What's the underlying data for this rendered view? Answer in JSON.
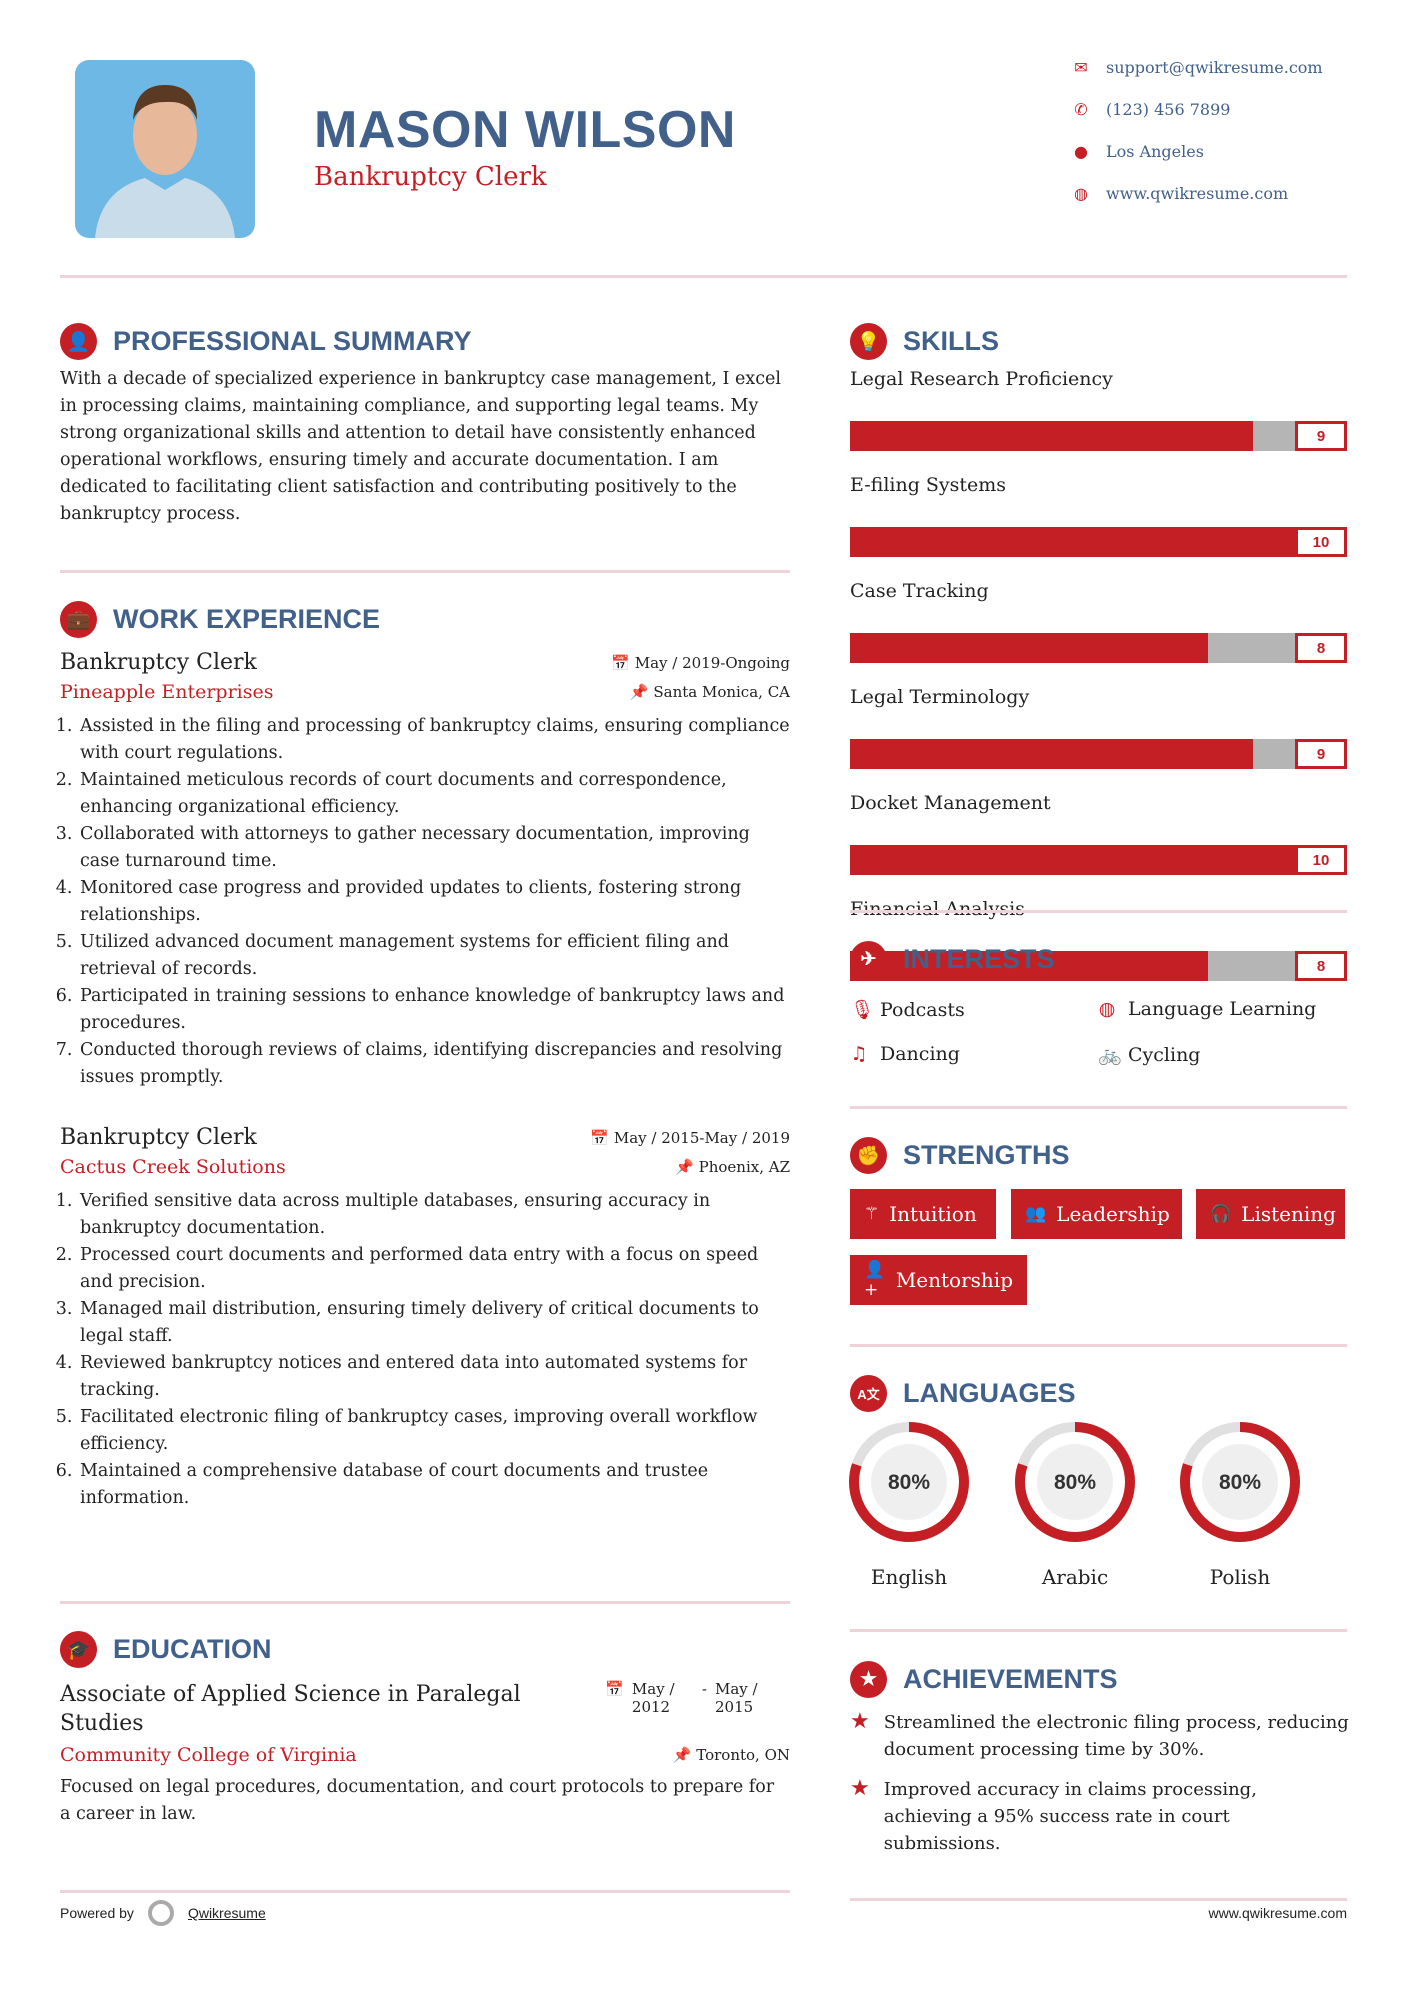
{
  "header": {
    "name": "MASON WILSON",
    "title": "Bankruptcy Clerk",
    "contacts": [
      {
        "icon": "envelope-icon",
        "text": "support@qwikresume.com"
      },
      {
        "icon": "phone-icon",
        "text": "(123) 456 7899"
      },
      {
        "icon": "map-marker-icon",
        "text": "Los Angeles"
      },
      {
        "icon": "globe-icon",
        "text": "www.qwikresume.com"
      }
    ]
  },
  "summary": {
    "heading": "PROFESSIONAL SUMMARY",
    "text": "With a decade of specialized experience in bankruptcy case management, I excel in processing claims, maintaining compliance, and supporting legal teams. My strong organizational skills and attention to detail have consistently enhanced operational workflows, ensuring timely and accurate documentation. I am dedicated to facilitating client satisfaction and contributing positively to the bankruptcy process."
  },
  "experience": {
    "heading": "WORK EXPERIENCE",
    "jobs": [
      {
        "title": "Bankruptcy Clerk",
        "company": "Pineapple Enterprises",
        "dates": "May / 2019-Ongoing",
        "location": "Santa Monica, CA",
        "items": [
          "Assisted in the filing and processing of bankruptcy claims, ensuring compliance with court regulations.",
          "Maintained meticulous records of court documents and correspondence, enhancing organizational efficiency.",
          "Collaborated with attorneys to gather necessary documentation, improving case turnaround time.",
          "Monitored case progress and provided updates to clients, fostering strong relationships.",
          "Utilized advanced document management systems for efficient filing and retrieval of records.",
          "Participated in training sessions to enhance knowledge of bankruptcy laws and procedures.",
          "Conducted thorough reviews of claims, identifying discrepancies and resolving issues promptly."
        ]
      },
      {
        "title": "Bankruptcy Clerk",
        "company": "Cactus Creek Solutions",
        "dates": "May / 2015-May / 2019",
        "location": "Phoenix, AZ",
        "items": [
          "Verified sensitive data across multiple databases, ensuring accuracy in bankruptcy documentation.",
          "Processed court documents and performed data entry with a focus on speed and precision.",
          "Managed mail distribution, ensuring timely delivery of critical documents to legal staff.",
          "Reviewed bankruptcy notices and entered data into automated systems for tracking.",
          "Facilitated electronic filing of bankruptcy cases, improving overall workflow efficiency.",
          "Maintained a comprehensive database of court documents and trustee information."
        ]
      }
    ]
  },
  "education": {
    "heading": "EDUCATION",
    "degree": "Associate of Applied Science in Paralegal Studies",
    "school": "Community College of Virginia",
    "start": "May / 2012",
    "end": "May / 2015",
    "location": "Toronto, ON",
    "text": "Focused on legal procedures, documentation, and court protocols to prepare for a career in law."
  },
  "skills": {
    "heading": "SKILLS",
    "max": 10,
    "items": [
      {
        "label": "Legal Research Proficiency",
        "value": 9
      },
      {
        "label": "E-filing Systems",
        "value": 10
      },
      {
        "label": "Case Tracking",
        "value": 8
      },
      {
        "label": "Legal Terminology",
        "value": 9
      },
      {
        "label": "Docket Management",
        "value": 10
      },
      {
        "label": "Financial Analysis",
        "value": 8
      }
    ]
  },
  "interests": {
    "heading": "INTERESTS",
    "items": [
      {
        "icon": "microphone-icon",
        "label": "Podcasts"
      },
      {
        "icon": "globe-icon",
        "label": "Language Learning"
      },
      {
        "icon": "music-icon",
        "label": "Dancing"
      },
      {
        "icon": "bicycle-icon",
        "label": "Cycling"
      }
    ]
  },
  "strengths": {
    "heading": "STRENGTHS",
    "items": [
      {
        "icon": "magic-wand-icon",
        "label": "Intuition"
      },
      {
        "icon": "users-icon",
        "label": "Leadership"
      },
      {
        "icon": "headphones-icon",
        "label": "Listening"
      },
      {
        "icon": "user-plus-icon",
        "label": "Mentorship"
      }
    ]
  },
  "languages": {
    "heading": "LANGUAGES",
    "items": [
      {
        "label": "English",
        "percent": 80,
        "text": "80%"
      },
      {
        "label": "Arabic",
        "percent": 80,
        "text": "80%"
      },
      {
        "label": "Polish",
        "percent": 80,
        "text": "80%"
      }
    ]
  },
  "achievements": {
    "heading": "ACHIEVEMENTS",
    "items": [
      "Streamlined the electronic filing process, reducing document processing time by 30%.",
      "Improved accuracy in claims processing, achieving a 95% success rate in court submissions."
    ]
  },
  "footer": {
    "powered_by": "Powered by",
    "brand": "Qwikresume",
    "site": "www.qwikresume.com"
  },
  "colors": {
    "accent": "#c41f24",
    "heading": "#41608a",
    "bar_bg": "#b5b5b5",
    "rule": "#f0d3d8"
  }
}
